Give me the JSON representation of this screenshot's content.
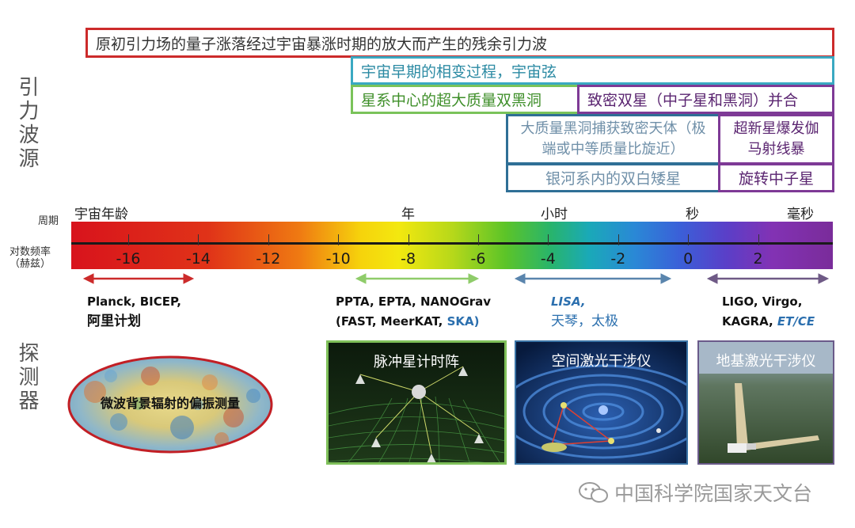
{
  "side_labels": {
    "sources": "引力波源",
    "detectors": "探测器"
  },
  "sources": {
    "primordial": "原初引力场的量子涨落经过宇宙暴涨时期的放大而产生的残余引力波",
    "early_universe": "宇宙早期的相变过程，宇宙弦",
    "smbh": "星系中心的超大质量双黑洞",
    "compact_binary": "致密双星（中子星和黑洞）并合",
    "emri": "大质量黑洞捕获致密天体（极端或中等质量比旋近）",
    "supernova": "超新星爆发伽马射线暴",
    "white_dwarf": "银河系内的双白矮星",
    "neutron_star": "旋转中子星"
  },
  "scale": {
    "period_title": "周期",
    "freq_title": "对数频率（赫兹）",
    "period_labels": [
      "宇宙年龄",
      "年",
      "小时",
      "秒",
      "毫秒"
    ],
    "ticks": [
      "-16",
      "-14",
      "-12",
      "-10",
      "-8",
      "-6",
      "-4",
      "-2",
      "0",
      "2"
    ],
    "colors": {
      "red": "#cc2b2b",
      "green": "#7ac35a",
      "blue": "#2f6f96",
      "purple": "#7e3a96"
    }
  },
  "detectors": {
    "cmb_line1": "Planck, BICEP,",
    "cmb_line2": "阿里计划",
    "pta_line1": "PPTA, EPTA, NANOGrav",
    "pta_line2a": "(FAST, MeerKAT, ",
    "pta_line2b": "SKA)",
    "space_line1": "LISA,",
    "space_line2": "天琴，太极",
    "ground_line1": "LIGO, Virgo,",
    "ground_line2a": "KAGRA, ",
    "ground_line2b": "ET/CE"
  },
  "panels": {
    "cmb": "微波背景辐射的偏振测量",
    "pta": "脉冲星计时阵",
    "space": "空间激光干涉仪",
    "ground": "地基激光干涉仪"
  },
  "watermark": "中国科学院国家天文台"
}
